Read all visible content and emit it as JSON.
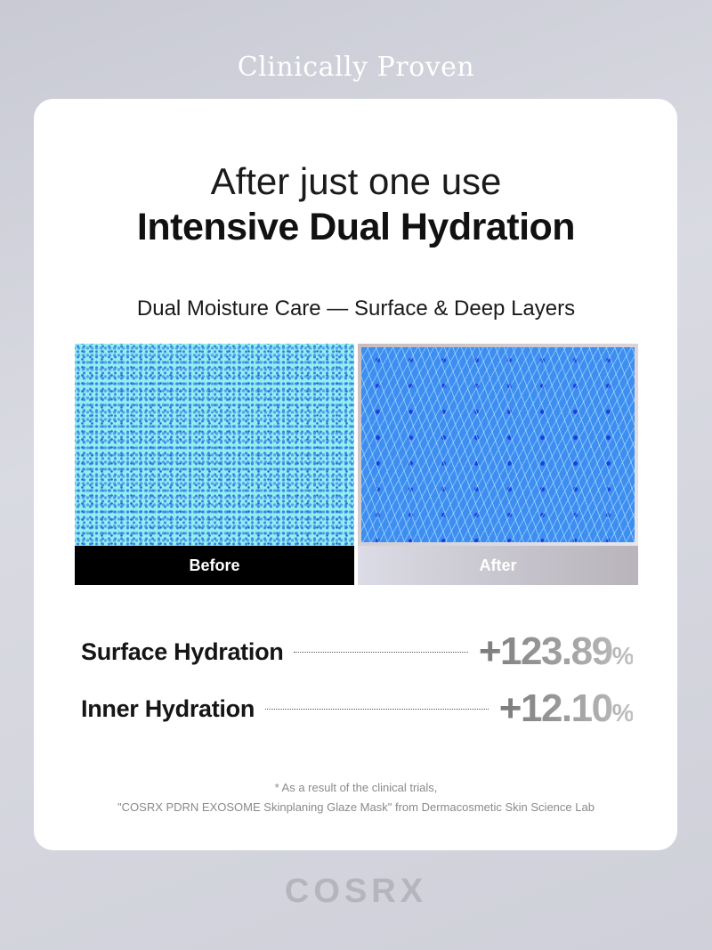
{
  "header": {
    "title": "Clinically Proven"
  },
  "card": {
    "headline": "After just one use",
    "headline_bold": "Intensive Dual Hydration",
    "subtitle": "Dual Moisture Care — Surface & Deep Layers",
    "images": [
      {
        "label": "Before"
      },
      {
        "label": "After"
      }
    ],
    "stats": [
      {
        "name": "Surface Hydration",
        "value": "+123.89",
        "unit": "%"
      },
      {
        "name": "Inner Hydration",
        "value": "+12.10",
        "unit": "%"
      }
    ],
    "footnote_1": "* As a result of the clinical trials,",
    "footnote_2": "\"COSRX PDRN EXOSOME Skinplaning Glaze Mask\" from Dermacosmetic Skin Science Lab"
  },
  "brand": {
    "logo": "COSRX"
  }
}
